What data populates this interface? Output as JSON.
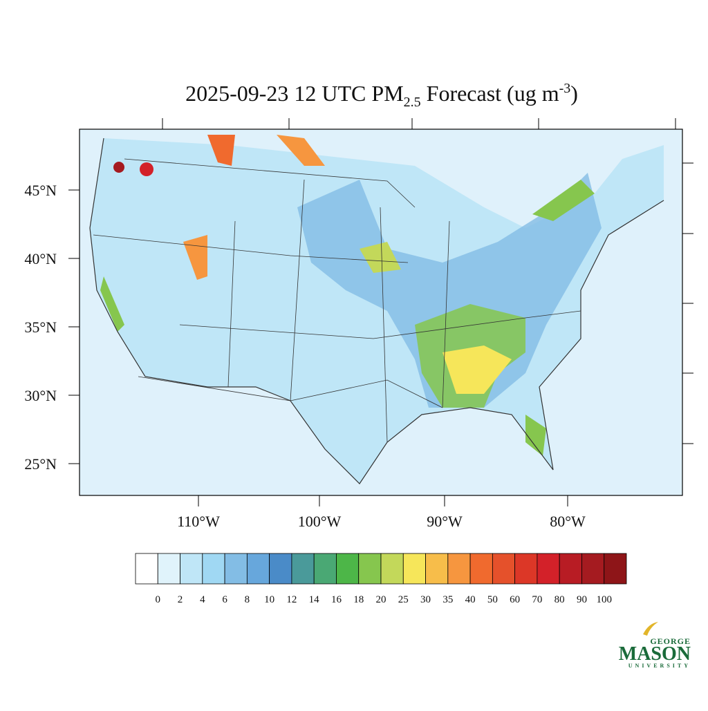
{
  "map": {
    "title": {
      "main": "2025-09-23 12 UTC PM",
      "subscript": "2.5",
      "middle": " Forecast (ug m",
      "superscript": "-3",
      "end": ")"
    },
    "lat_labels": [
      "45°N",
      "40°N",
      "35°N",
      "30°N",
      "25°N"
    ],
    "lon_labels": [
      "110°W",
      "100°W",
      "90°W",
      "80°W"
    ],
    "colorbar": {
      "levels": [
        0,
        2,
        4,
        6,
        8,
        10,
        12,
        14,
        16,
        18,
        20,
        25,
        30,
        35,
        40,
        50,
        60,
        70,
        80,
        90,
        100
      ],
      "colors": [
        "#ffffff",
        "#e0f3fb",
        "#bfe6f7",
        "#a0d8f3",
        "#83bde5",
        "#67a7dc",
        "#4a8bc8",
        "#4a9a9a",
        "#4aa874",
        "#4db648",
        "#86c64e",
        "#c3d85a",
        "#f6e65a",
        "#f7bd4a",
        "#f6963f",
        "#f06a2e",
        "#e5512b",
        "#dc3727",
        "#d32129",
        "#b81c24",
        "#a51b20",
        "#8e1518"
      ]
    },
    "logo": {
      "top": "GEORGE",
      "name": "MASON",
      "bottom": "UNIVERSITY"
    }
  }
}
